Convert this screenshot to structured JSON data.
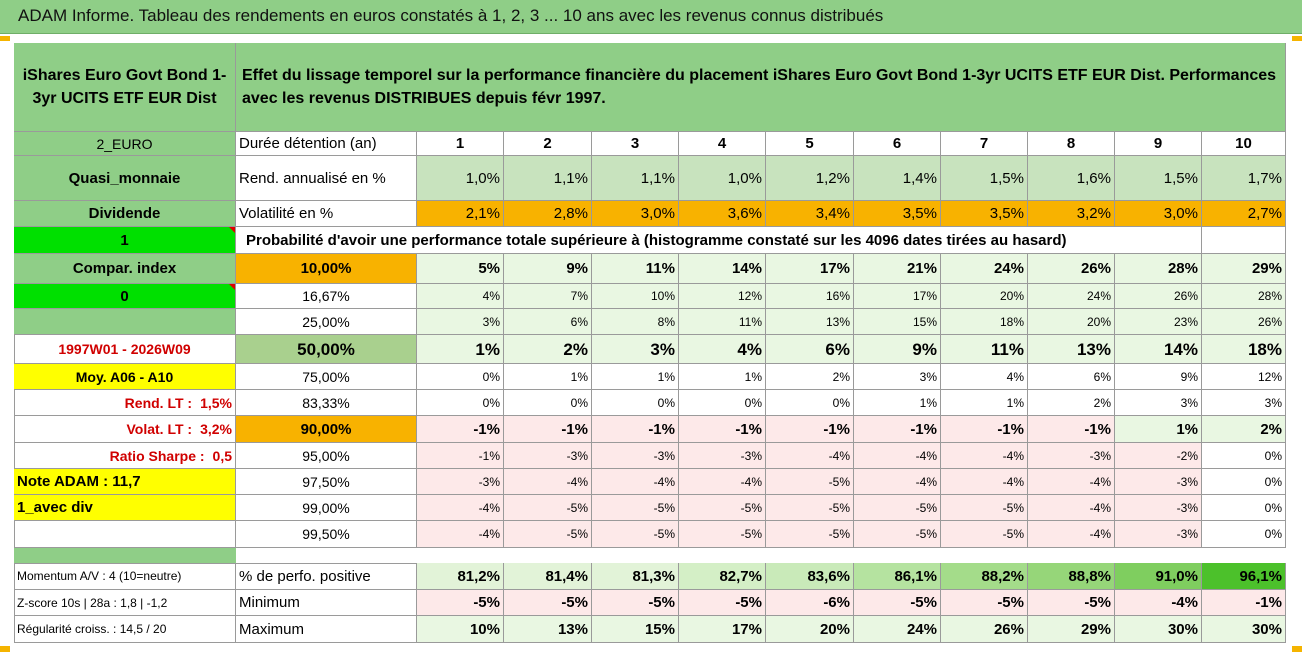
{
  "title": "ADAM Informe. Tableau des rendements en euros constatés à 1, 2, 3 ... 10 ans avec les revenus connus distribués",
  "fund": {
    "name": "iShares Euro Govt Bond 1-3yr UCITS ETF EUR Dist",
    "description": "Effet du lissage temporel sur la performance financière du placement iShares Euro Govt Bond 1-3yr UCITS ETF EUR Dist. Performances avec les revenus DISTRIBUES depuis févr 1997."
  },
  "sidebar": {
    "currency": "2_EURO",
    "category": "Quasi_monnaie",
    "dividend_label": "Dividende",
    "flag1": "1",
    "compar_label": "Compar. index",
    "flag0": "0",
    "period": "1997W01 - 2026W09",
    "moy": "Moy. A06 - A10",
    "rend_lt_label": "Rend. LT :",
    "rend_lt_value": "1,5%",
    "volat_lt_label": "Volat. LT :",
    "volat_lt_value": "3,2%",
    "sharpe_label": "Ratio Sharpe :",
    "sharpe_value": "0,5",
    "note": "Note ADAM : 11,7",
    "div_mode": "1_avec div"
  },
  "table": {
    "duration_label": "Durée détention (an)",
    "years": [
      "1",
      "2",
      "3",
      "4",
      "5",
      "6",
      "7",
      "8",
      "9",
      "10"
    ],
    "rend_label": "Rend. annualisé en %",
    "rend": [
      "1,0%",
      "1,1%",
      "1,1%",
      "1,0%",
      "1,2%",
      "1,4%",
      "1,5%",
      "1,6%",
      "1,5%",
      "1,7%"
    ],
    "vol_label": "Volatilité en %",
    "vol": [
      "2,1%",
      "2,8%",
      "3,0%",
      "3,6%",
      "3,4%",
      "3,5%",
      "3,5%",
      "3,2%",
      "3,0%",
      "2,7%"
    ],
    "prob_title": "Probabilité d'avoir une performance totale supérieure à (histogramme constaté sur les 4096 dates tirées au hasard)",
    "prob_rows": [
      {
        "level": "10,00%",
        "values": [
          "5%",
          "9%",
          "11%",
          "14%",
          "17%",
          "21%",
          "24%",
          "26%",
          "28%",
          "29%"
        ]
      },
      {
        "level": "16,67%",
        "values": [
          "4%",
          "7%",
          "10%",
          "12%",
          "16%",
          "17%",
          "20%",
          "24%",
          "26%",
          "28%"
        ]
      },
      {
        "level": "25,00%",
        "values": [
          "3%",
          "6%",
          "8%",
          "11%",
          "13%",
          "15%",
          "18%",
          "20%",
          "23%",
          "26%"
        ]
      },
      {
        "level": "50,00%",
        "values": [
          "1%",
          "2%",
          "3%",
          "4%",
          "6%",
          "9%",
          "11%",
          "13%",
          "14%",
          "18%"
        ]
      },
      {
        "level": "75,00%",
        "values": [
          "0%",
          "1%",
          "1%",
          "1%",
          "2%",
          "3%",
          "4%",
          "6%",
          "9%",
          "12%"
        ]
      },
      {
        "level": "83,33%",
        "values": [
          "0%",
          "0%",
          "0%",
          "0%",
          "0%",
          "1%",
          "1%",
          "2%",
          "3%",
          "3%"
        ]
      },
      {
        "level": "90,00%",
        "values": [
          "-1%",
          "-1%",
          "-1%",
          "-1%",
          "-1%",
          "-1%",
          "-1%",
          "-1%",
          "1%",
          "2%"
        ]
      },
      {
        "level": "95,00%",
        "values": [
          "-1%",
          "-3%",
          "-3%",
          "-3%",
          "-4%",
          "-4%",
          "-4%",
          "-3%",
          "-2%",
          "0%"
        ]
      },
      {
        "level": "97,50%",
        "values": [
          "-3%",
          "-4%",
          "-4%",
          "-4%",
          "-5%",
          "-4%",
          "-4%",
          "-4%",
          "-3%",
          "0%"
        ]
      },
      {
        "level": "99,00%",
        "values": [
          "-4%",
          "-5%",
          "-5%",
          "-5%",
          "-5%",
          "-5%",
          "-5%",
          "-4%",
          "-3%",
          "0%"
        ]
      },
      {
        "level": "99,50%",
        "values": [
          "-4%",
          "-5%",
          "-5%",
          "-5%",
          "-5%",
          "-5%",
          "-5%",
          "-4%",
          "-3%",
          "0%"
        ]
      }
    ],
    "pos_label": "% de perfo. positive",
    "pos": [
      "81,2%",
      "81,4%",
      "81,3%",
      "82,7%",
      "83,6%",
      "86,1%",
      "88,2%",
      "88,8%",
      "91,0%",
      "96,1%"
    ],
    "min_label": "Minimum",
    "min": [
      "-5%",
      "-5%",
      "-5%",
      "-5%",
      "-6%",
      "-5%",
      "-5%",
      "-5%",
      "-4%",
      "-1%"
    ],
    "max_label": "Maximum",
    "max": [
      "10%",
      "13%",
      "15%",
      "17%",
      "20%",
      "24%",
      "26%",
      "29%",
      "30%",
      "30%"
    ]
  },
  "footer": {
    "momentum": "Momentum A/V : 4 (10=neutre)",
    "zscore": "Z-score 10s | 28a : 1,8 | -1,2",
    "regularite": "Régularité croiss. : 14,5 / 20"
  },
  "colors": {
    "header_green": "#8fce87",
    "rend_green": "#c8e3be",
    "vol_orange": "#f8b200",
    "flag_green": "#00e000",
    "yellow": "#ffff00",
    "pink": "#fde9e9",
    "light_green": "#e9f7e2",
    "mid_green": "#a9d08e"
  }
}
